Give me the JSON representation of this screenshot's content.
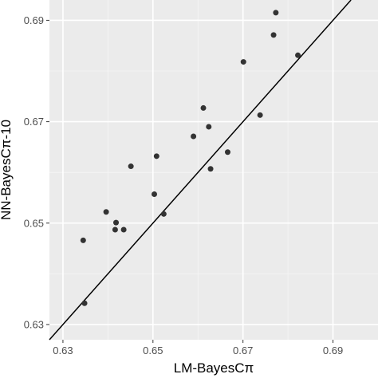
{
  "chart_data": {
    "type": "scatter",
    "title": "",
    "xlabel": "LM-BayesCπ",
    "ylabel": "NN-BayesCπ-10",
    "xlim": [
      0.627,
      0.7
    ],
    "ylim": [
      0.627,
      0.694
    ],
    "x_ticks": [
      "0.63",
      "0.65",
      "0.67",
      "0.69"
    ],
    "y_ticks": [
      "0.63",
      "0.65",
      "0.67",
      "0.69"
    ],
    "grid": true,
    "reference_line": {
      "type": "identity",
      "slope": 1,
      "intercept": 0
    },
    "colors": {
      "panel": "#ebebeb",
      "grid_major": "#ffffff",
      "grid_minor": "#f5f5f5",
      "point": "#333333",
      "line": "#000000"
    },
    "points": [
      {
        "x": 0.6345,
        "y": 0.6466
      },
      {
        "x": 0.6348,
        "y": 0.6342
      },
      {
        "x": 0.6396,
        "y": 0.6522
      },
      {
        "x": 0.6416,
        "y": 0.6487
      },
      {
        "x": 0.6418,
        "y": 0.6501
      },
      {
        "x": 0.6435,
        "y": 0.6487
      },
      {
        "x": 0.6451,
        "y": 0.6612
      },
      {
        "x": 0.6503,
        "y": 0.6557
      },
      {
        "x": 0.6508,
        "y": 0.6632
      },
      {
        "x": 0.6524,
        "y": 0.6518
      },
      {
        "x": 0.659,
        "y": 0.6671
      },
      {
        "x": 0.6612,
        "y": 0.6727
      },
      {
        "x": 0.6624,
        "y": 0.669
      },
      {
        "x": 0.6628,
        "y": 0.6607
      },
      {
        "x": 0.6666,
        "y": 0.664
      },
      {
        "x": 0.6701,
        "y": 0.6818
      },
      {
        "x": 0.6738,
        "y": 0.6713
      },
      {
        "x": 0.6768,
        "y": 0.6871
      },
      {
        "x": 0.6773,
        "y": 0.6915
      },
      {
        "x": 0.6822,
        "y": 0.6831
      }
    ]
  }
}
